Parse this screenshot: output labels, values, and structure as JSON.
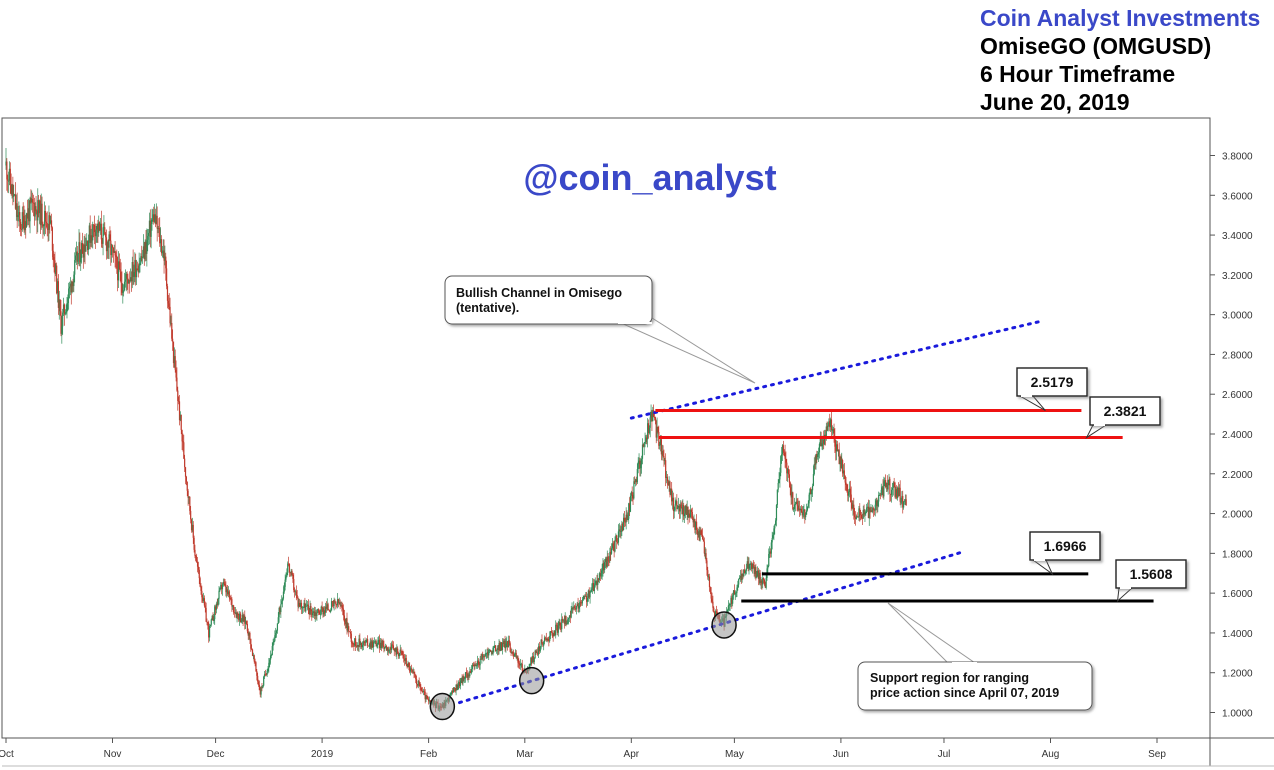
{
  "header": {
    "company": "Coin Analyst Investments",
    "pair": "OmiseGO (OMGUSD)",
    "timeframe": "6 Hour Timeframe",
    "date": "June 20, 2019"
  },
  "watermark": "@coin_analyst",
  "colors": {
    "brand": "#3a48c8",
    "resistance": "#ee1111",
    "support": "#000000",
    "channel": "#1a1adc",
    "candle_up": "#2e8b57",
    "candle_down": "#c0392b"
  },
  "annotations": {
    "channel_note": [
      "Bullish Channel in Omisego",
      "(tentative)."
    ],
    "support_note": [
      "Support region for ranging",
      "price action since April 07, 2019"
    ]
  },
  "chart_data": {
    "type": "candlestick",
    "title": "",
    "x_range": [
      "2018-10-01",
      "2019-09-30"
    ],
    "ylim": [
      0.88,
      3.96
    ],
    "y_ticks": [
      "3.8000",
      "3.6000",
      "3.4000",
      "3.2000",
      "3.0000",
      "2.8000",
      "2.6000",
      "2.4000",
      "2.2000",
      "2.0000",
      "1.8000",
      "1.6000",
      "1.4000",
      "1.2000",
      "1.0000"
    ],
    "x_ticks": [
      {
        "date": "2018-10-01",
        "label": "Oct"
      },
      {
        "date": "2018-11-01",
        "label": "Nov"
      },
      {
        "date": "2018-12-01",
        "label": "Dec"
      },
      {
        "date": "2019-01-01",
        "label": "2019"
      },
      {
        "date": "2019-02-01",
        "label": "Feb"
      },
      {
        "date": "2019-03-01",
        "label": "Mar"
      },
      {
        "date": "2019-04-01",
        "label": "Apr"
      },
      {
        "date": "2019-05-01",
        "label": "May"
      },
      {
        "date": "2019-06-01",
        "label": "Jun"
      },
      {
        "date": "2019-07-01",
        "label": "Jul"
      },
      {
        "date": "2019-08-01",
        "label": "Aug"
      },
      {
        "date": "2019-09-01",
        "label": "Sep"
      }
    ],
    "price_path": [
      [
        "2018-10-01",
        3.75
      ],
      [
        "2018-10-05",
        3.45
      ],
      [
        "2018-10-09",
        3.55
      ],
      [
        "2018-10-14",
        3.45
      ],
      [
        "2018-10-17",
        2.95
      ],
      [
        "2018-10-22",
        3.3
      ],
      [
        "2018-10-27",
        3.45
      ],
      [
        "2018-10-31",
        3.35
      ],
      [
        "2018-11-04",
        3.15
      ],
      [
        "2018-11-10",
        3.3
      ],
      [
        "2018-11-13",
        3.5
      ],
      [
        "2018-11-16",
        3.3
      ],
      [
        "2018-11-19",
        2.75
      ],
      [
        "2018-11-22",
        2.25
      ],
      [
        "2018-11-25",
        1.8
      ],
      [
        "2018-11-29",
        1.4
      ],
      [
        "2018-12-03",
        1.65
      ],
      [
        "2018-12-07",
        1.5
      ],
      [
        "2018-12-10",
        1.45
      ],
      [
        "2018-12-14",
        1.1
      ],
      [
        "2018-12-18",
        1.35
      ],
      [
        "2018-12-22",
        1.75
      ],
      [
        "2018-12-25",
        1.55
      ],
      [
        "2018-12-30",
        1.5
      ],
      [
        "2019-01-06",
        1.55
      ],
      [
        "2019-01-10",
        1.35
      ],
      [
        "2019-01-17",
        1.35
      ],
      [
        "2019-01-24",
        1.3
      ],
      [
        "2019-02-01",
        1.05
      ],
      [
        "2019-02-05",
        1.03
      ],
      [
        "2019-02-10",
        1.15
      ],
      [
        "2019-02-18",
        1.3
      ],
      [
        "2019-02-24",
        1.35
      ],
      [
        "2019-03-01",
        1.2
      ],
      [
        "2019-03-06",
        1.35
      ],
      [
        "2019-03-12",
        1.45
      ],
      [
        "2019-03-20",
        1.6
      ],
      [
        "2019-03-26",
        1.8
      ],
      [
        "2019-03-31",
        2.0
      ],
      [
        "2019-04-04",
        2.3
      ],
      [
        "2019-04-07",
        2.5
      ],
      [
        "2019-04-10",
        2.3
      ],
      [
        "2019-04-13",
        2.05
      ],
      [
        "2019-04-18",
        2.0
      ],
      [
        "2019-04-22",
        1.85
      ],
      [
        "2019-04-25",
        1.5
      ],
      [
        "2019-04-28",
        1.45
      ],
      [
        "2019-05-01",
        1.6
      ],
      [
        "2019-05-05",
        1.75
      ],
      [
        "2019-05-10",
        1.65
      ],
      [
        "2019-05-13",
        2.0
      ],
      [
        "2019-05-15",
        2.35
      ],
      [
        "2019-05-18",
        2.05
      ],
      [
        "2019-05-22",
        2.0
      ],
      [
        "2019-05-25",
        2.3
      ],
      [
        "2019-05-29",
        2.45
      ],
      [
        "2019-06-01",
        2.25
      ],
      [
        "2019-06-05",
        2.0
      ],
      [
        "2019-06-10",
        2.0
      ],
      [
        "2019-06-14",
        2.15
      ],
      [
        "2019-06-18",
        2.1
      ],
      [
        "2019-06-20",
        2.03
      ]
    ],
    "price_levels": [
      {
        "name": "resistance-high",
        "value": 2.5179,
        "label": "2.5179",
        "color": "#ee1111",
        "from": "2019-04-08",
        "to": "2019-08-10"
      },
      {
        "name": "resistance-low",
        "value": 2.3821,
        "label": "2.3821",
        "color": "#ee1111",
        "from": "2019-04-09",
        "to": "2019-08-22"
      },
      {
        "name": "support-high",
        "value": 1.6966,
        "label": "1.6966",
        "color": "#000000",
        "from": "2019-05-09",
        "to": "2019-08-12"
      },
      {
        "name": "support-low",
        "value": 1.5608,
        "label": "1.5608",
        "color": "#000000",
        "from": "2019-05-03",
        "to": "2019-08-31"
      }
    ],
    "channel_lines": [
      {
        "name": "upper",
        "points": [
          [
            "2019-04-01",
            2.48
          ],
          [
            "2019-07-30",
            2.97
          ]
        ]
      },
      {
        "name": "lower",
        "points": [
          [
            "2019-02-10",
            1.05
          ],
          [
            "2019-07-07",
            1.81
          ]
        ]
      }
    ],
    "marked_lows": [
      {
        "date": "2019-02-05",
        "value": 1.03
      },
      {
        "date": "2019-03-03",
        "value": 1.16
      },
      {
        "date": "2019-04-28",
        "value": 1.44
      }
    ]
  }
}
